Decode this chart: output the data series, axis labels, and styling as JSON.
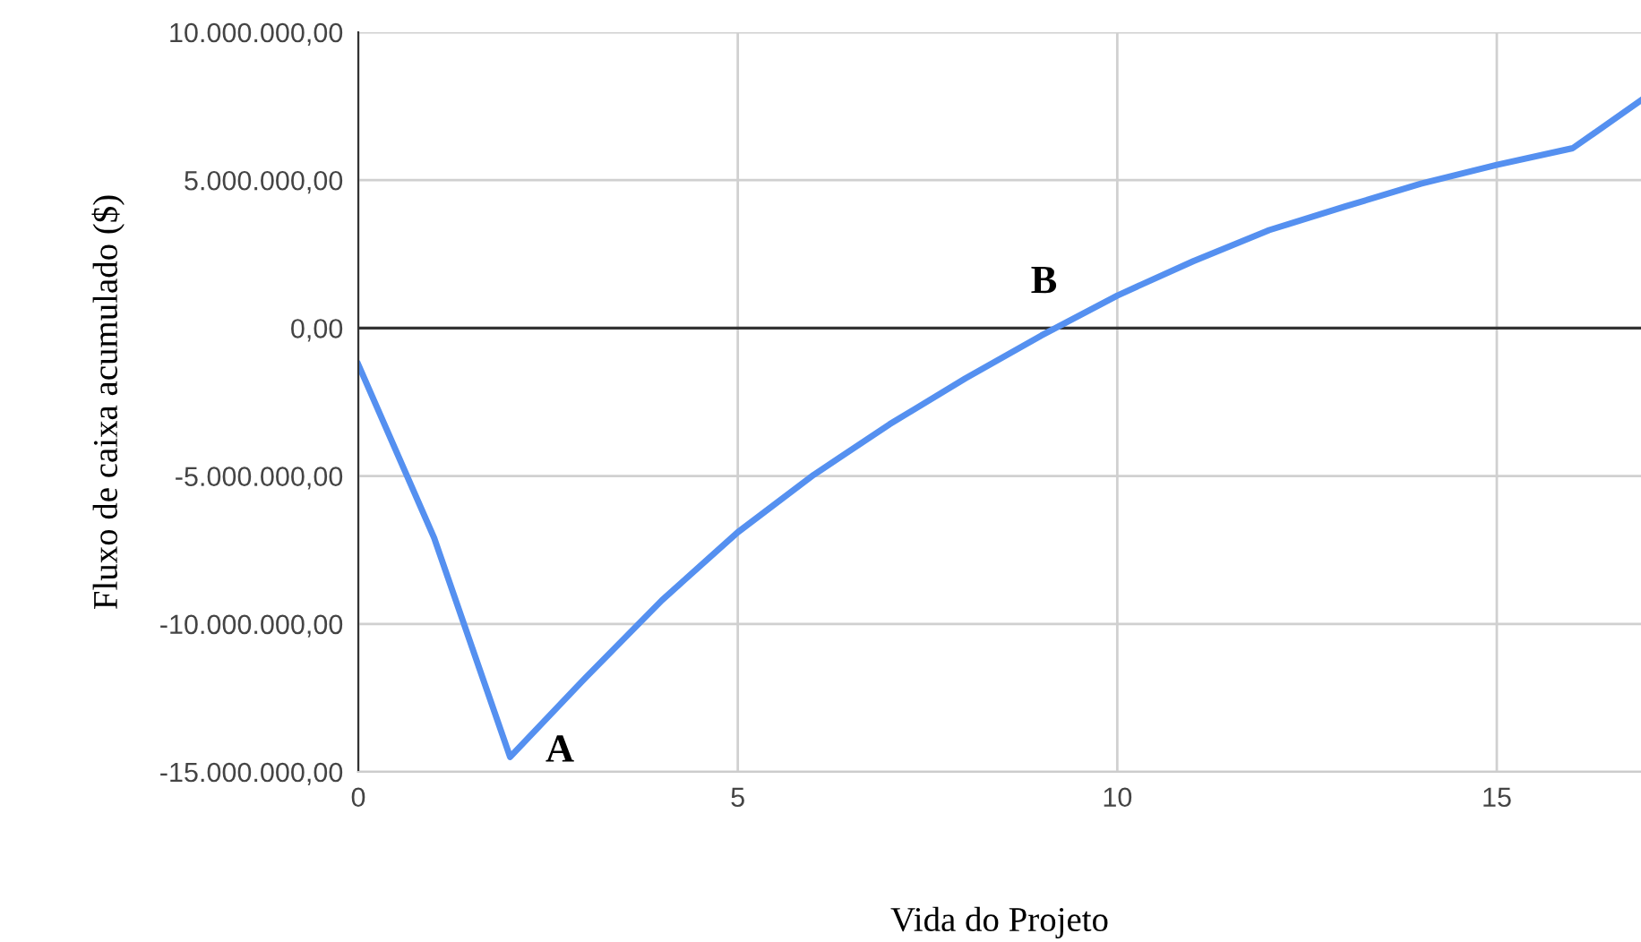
{
  "chart_data": {
    "type": "line",
    "xlabel": "Vida do Projeto",
    "ylabel": "Fluxo de caixa acumulado ($)",
    "x": [
      0,
      1,
      2,
      3,
      4,
      5,
      6,
      7,
      8,
      9,
      10,
      11,
      12,
      13,
      14,
      15,
      16,
      16.9
    ],
    "series": [
      {
        "color": "#5590f0",
        "values": [
          -1230000,
          -7100000,
          -14500000,
          -11800000,
          -9200000,
          -6900000,
          -4960000,
          -3250000,
          -1700000,
          -250000,
          1100000,
          2260000,
          3310000,
          4110000,
          4880000,
          5520000,
          6080000,
          7700000
        ]
      }
    ],
    "xlim": [
      0,
      16.9
    ],
    "xticks": [
      0,
      5,
      10,
      15
    ],
    "ylim": [
      -15000000,
      10000000
    ],
    "yticks": [
      {
        "value": -15000000,
        "label": "-15.000.000,00"
      },
      {
        "value": -10000000,
        "label": "-10.000.000,00"
      },
      {
        "value": -5000000,
        "label": "-5.000.000,00"
      },
      {
        "value": 0,
        "label": "0,00"
      },
      {
        "value": 5000000,
        "label": "5.000.000,00"
      },
      {
        "value": 10000000,
        "label": "10.000.000,00"
      }
    ],
    "ref_lines": [
      {
        "axis": "y",
        "value": 0,
        "color": "#333333"
      }
    ],
    "annotations": [
      {
        "text": "A",
        "x": 2,
        "y": -14500000
      },
      {
        "text": "B",
        "x": 9.1,
        "y": 0
      }
    ],
    "grid": true,
    "marker": "none",
    "line_style": "solid",
    "legend": false
  }
}
